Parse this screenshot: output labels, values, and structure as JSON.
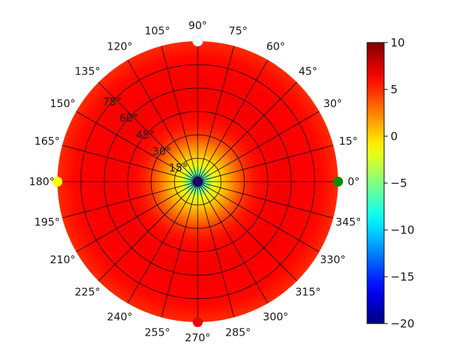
{
  "chart_data": {
    "type": "heatmap",
    "projection": "polar",
    "title": "",
    "grid": true,
    "azimuth_ticks": [
      {
        "value": 0,
        "label": "0°"
      },
      {
        "value": 15,
        "label": "15°"
      },
      {
        "value": 30,
        "label": "30°"
      },
      {
        "value": 45,
        "label": "45°"
      },
      {
        "value": 60,
        "label": "60°"
      },
      {
        "value": 75,
        "label": "75°"
      },
      {
        "value": 90,
        "label": "90°"
      },
      {
        "value": 105,
        "label": "105°"
      },
      {
        "value": 120,
        "label": "120°"
      },
      {
        "value": 135,
        "label": "135°"
      },
      {
        "value": 150,
        "label": "150°"
      },
      {
        "value": 165,
        "label": "165°"
      },
      {
        "value": 180,
        "label": "180°"
      },
      {
        "value": 195,
        "label": "195°"
      },
      {
        "value": 210,
        "label": "210°"
      },
      {
        "value": 225,
        "label": "225°"
      },
      {
        "value": 240,
        "label": "240°"
      },
      {
        "value": 255,
        "label": "255°"
      },
      {
        "value": 270,
        "label": "270°"
      },
      {
        "value": 285,
        "label": "285°"
      },
      {
        "value": 300,
        "label": "300°"
      },
      {
        "value": 315,
        "label": "315°"
      },
      {
        "value": 330,
        "label": "330°"
      },
      {
        "value": 345,
        "label": "345°"
      }
    ],
    "radial_ticks": [
      {
        "value": 15,
        "label": "15°"
      },
      {
        "value": 30,
        "label": "30°"
      },
      {
        "value": 45,
        "label": "45°"
      },
      {
        "value": 60,
        "label": "60°"
      },
      {
        "value": 75,
        "label": "75°"
      }
    ],
    "radial_range": [
      0,
      90
    ],
    "radial_label_azimuth": 135,
    "profile": {
      "radius": [
        0,
        5,
        10,
        15,
        20,
        25,
        30,
        35,
        40,
        50,
        60,
        70,
        80,
        90
      ],
      "value": [
        -20,
        -6,
        -2,
        0,
        1.5,
        3,
        4.5,
        5.5,
        6,
        6.5,
        6.5,
        6.3,
        6,
        5
      ]
    },
    "markers": [
      {
        "azimuth": 90,
        "radius": 90,
        "color": "#ffffff"
      },
      {
        "azimuth": 0,
        "radius": 90,
        "color": "#0a8a0a"
      },
      {
        "azimuth": 180,
        "radius": 90,
        "color": "#ffff00"
      },
      {
        "azimuth": 270,
        "radius": 90,
        "color": "#e8000b"
      },
      {
        "azimuth": 0,
        "radius": 0,
        "color": "#1a006e"
      }
    ],
    "colorbar": {
      "colormap": "jet",
      "range": [
        -20,
        10
      ],
      "ticks": [
        {
          "value": 10,
          "label": "10"
        },
        {
          "value": 5,
          "label": "5"
        },
        {
          "value": 0,
          "label": "0"
        },
        {
          "value": -5,
          "label": "−5"
        },
        {
          "value": -10,
          "label": "−10"
        },
        {
          "value": -15,
          "label": "−15"
        },
        {
          "value": -20,
          "label": "−20"
        }
      ]
    }
  }
}
